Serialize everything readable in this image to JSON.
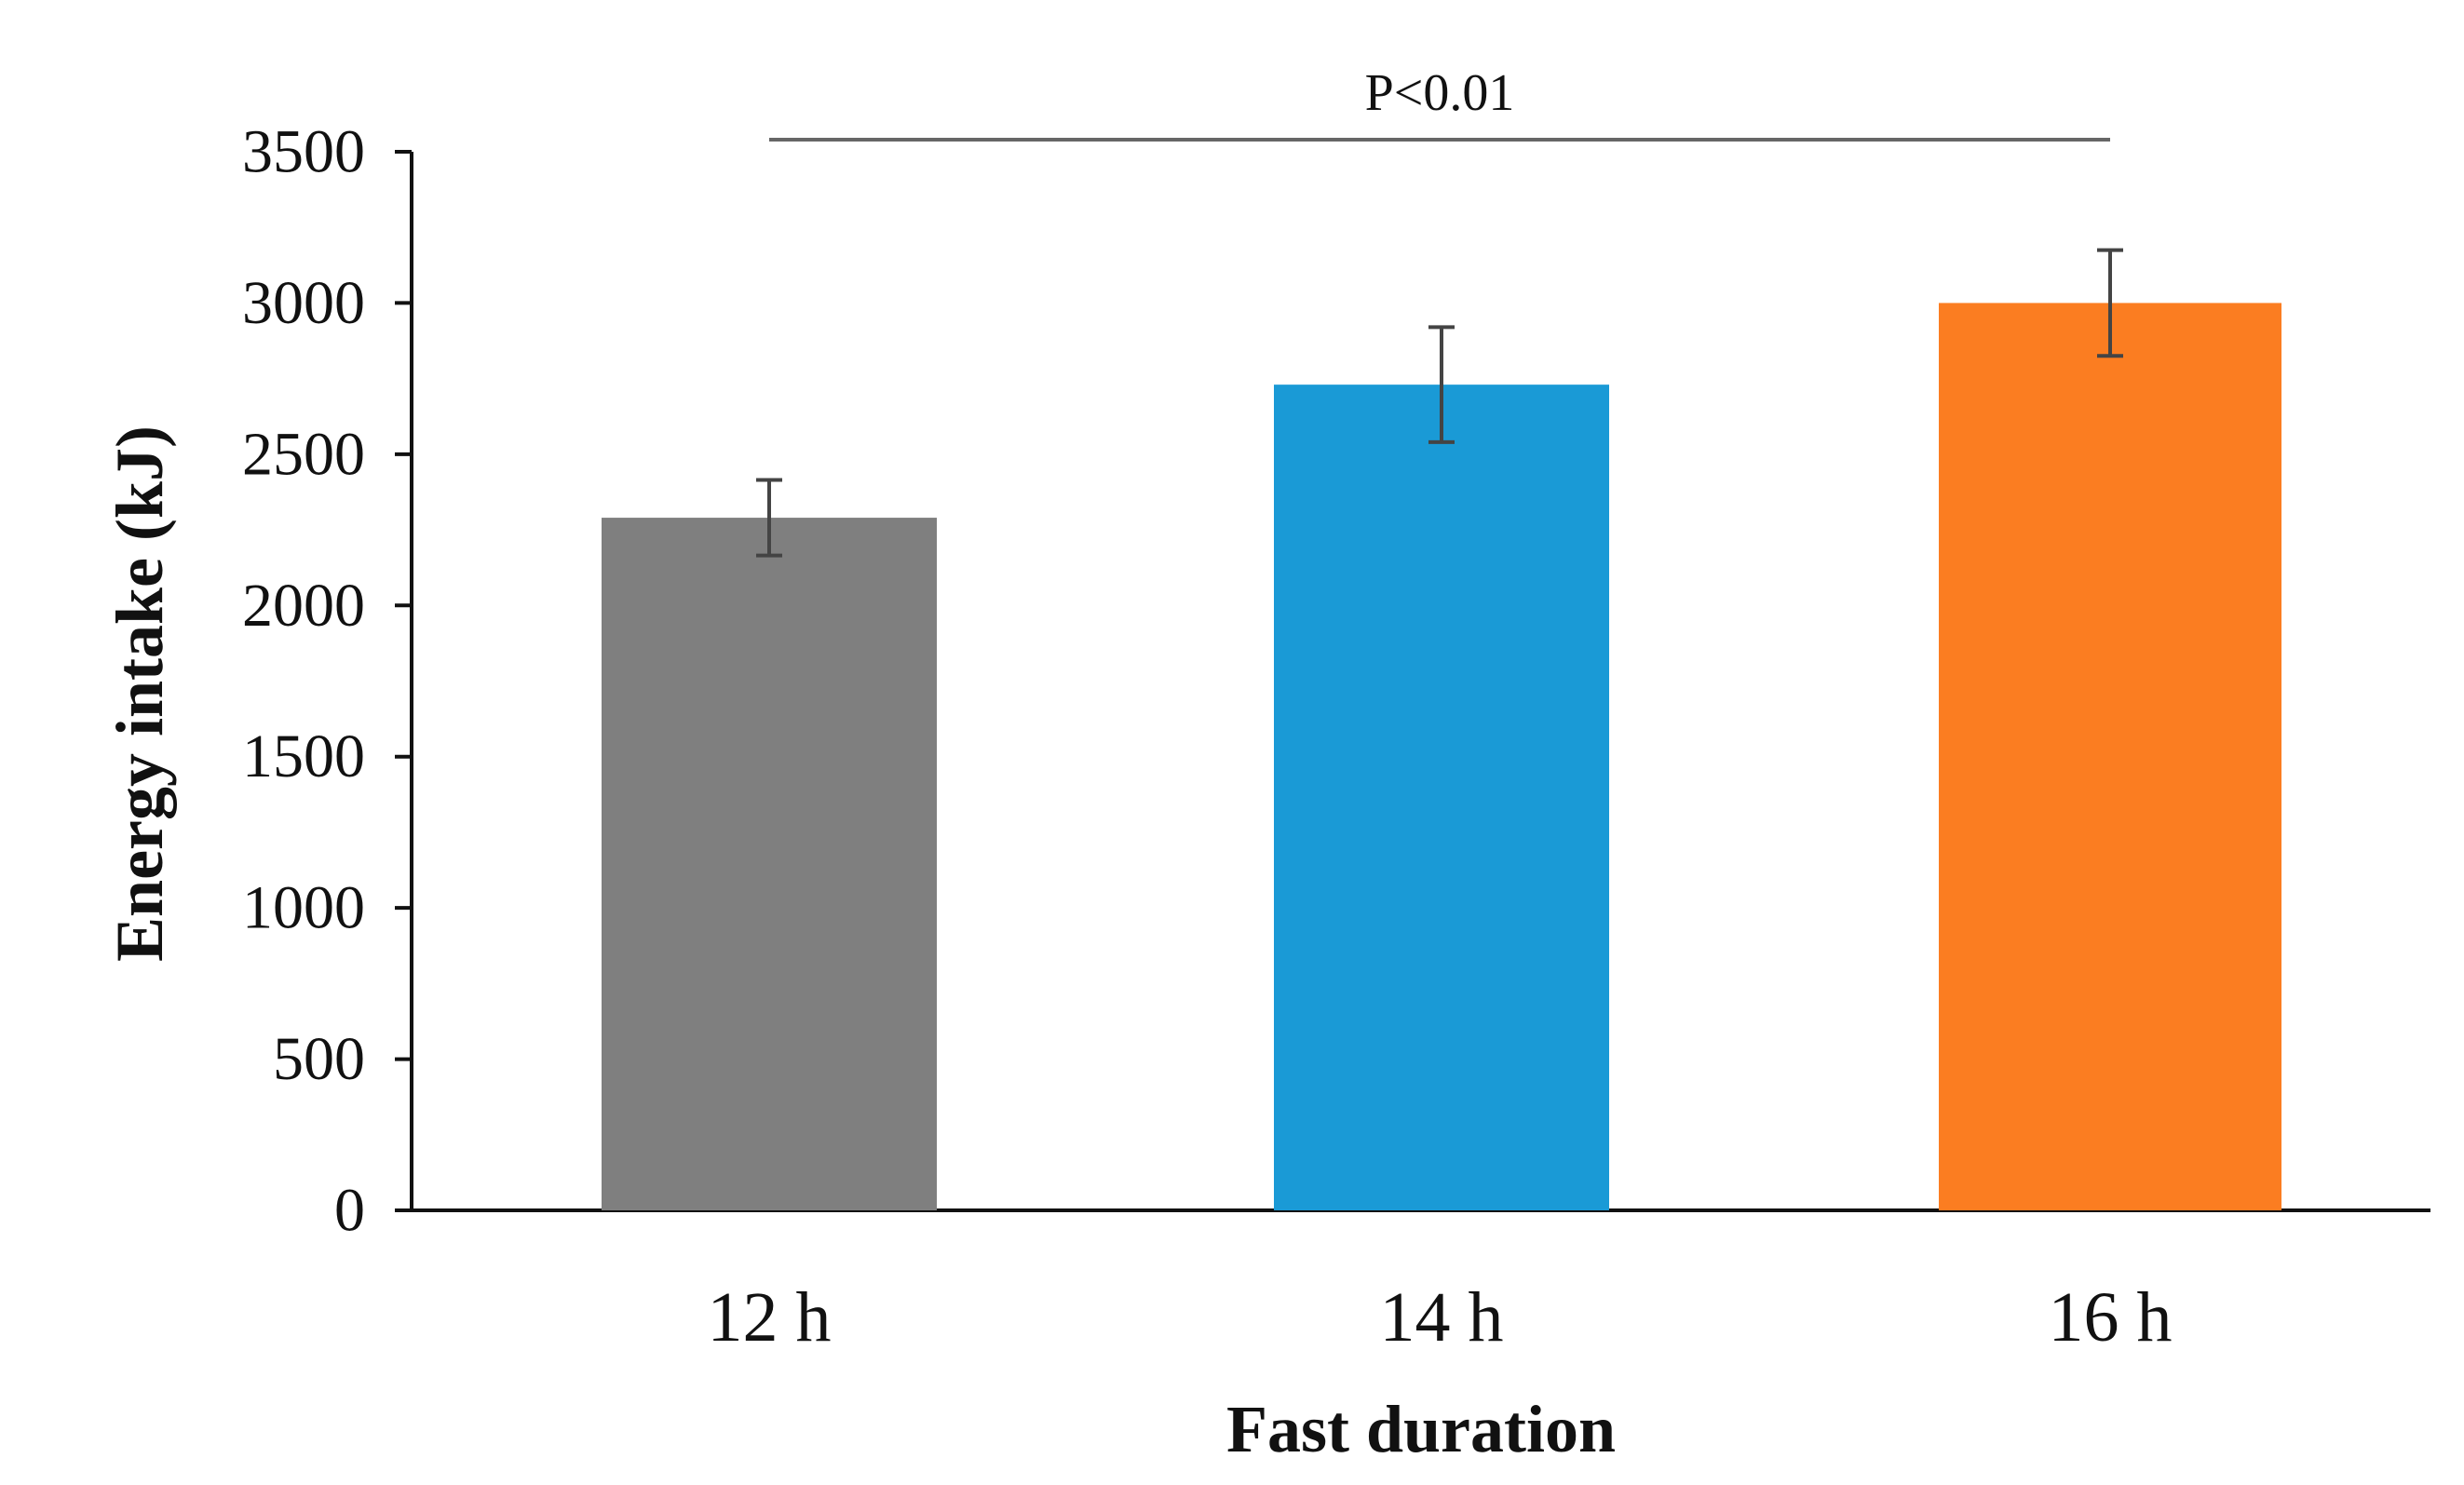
{
  "chart_data": {
    "type": "bar",
    "title": "",
    "xlabel": "Fast duration",
    "ylabel": "Energy intake (kJ)",
    "ylim": [
      0,
      3500
    ],
    "yticks": [
      0,
      500,
      1000,
      1500,
      2000,
      2500,
      3000,
      3500
    ],
    "categories": [
      "12 h",
      "14 h",
      "16 h"
    ],
    "values": [
      2290,
      2730,
      3000
    ],
    "errors": [
      125,
      190,
      175
    ],
    "colors": [
      "#7f7f7f",
      "#1a9ad6",
      "#fb7d21"
    ],
    "grid": false,
    "annotation": {
      "text": "P<0.01",
      "from_category": "12 h",
      "to_category": "16 h"
    }
  }
}
